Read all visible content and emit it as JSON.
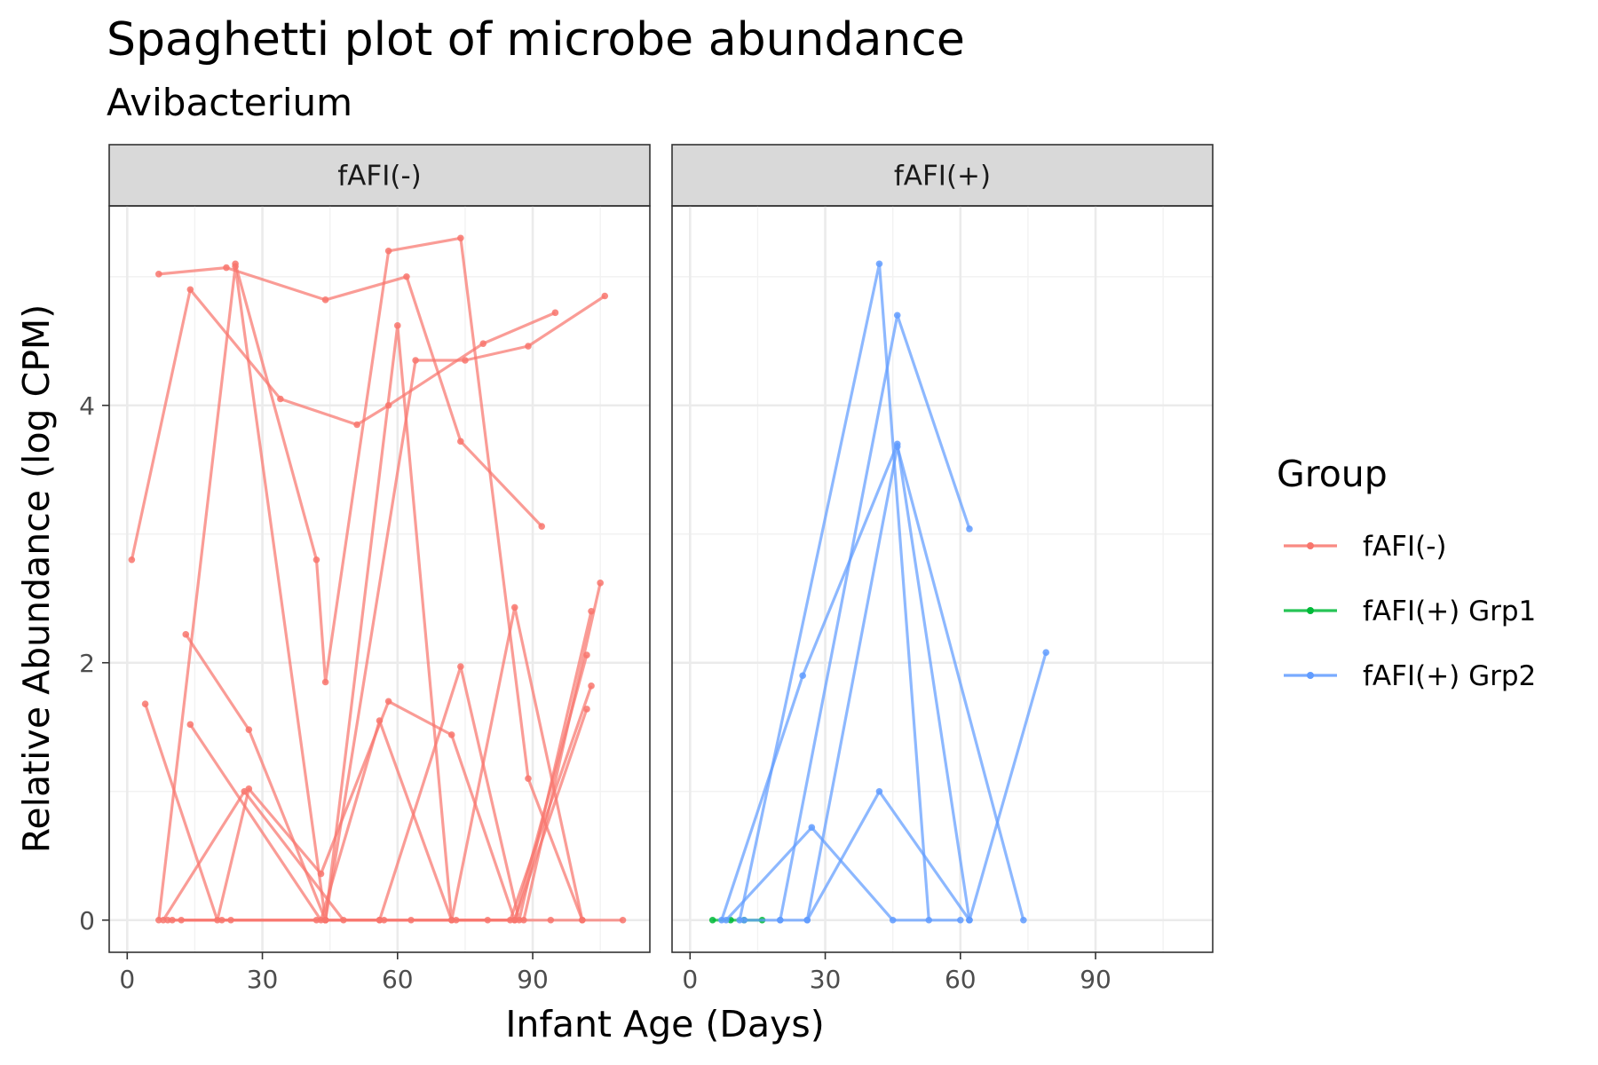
{
  "chart_data": {
    "type": "line",
    "title": "Spaghetti plot of microbe abundance",
    "subtitle": "Avibacterium",
    "xlabel": "Infant Age (Days)",
    "ylabel": "Relative Abundance (log CPM)",
    "xlim": [
      -4,
      116
    ],
    "ylim": [
      -0.25,
      5.55
    ],
    "x_ticks": [
      0,
      30,
      60,
      90
    ],
    "y_ticks": [
      0,
      2,
      4
    ],
    "grid": true,
    "legend": {
      "title": "Group",
      "position": "right",
      "items": [
        {
          "label": "fAFI(-)",
          "color": "#F8766D"
        },
        {
          "label": "fAFI(+) Grp1",
          "color": "#00BA38"
        },
        {
          "label": "fAFI(+) Grp2",
          "color": "#619CFF"
        }
      ]
    },
    "panels": [
      {
        "label": "fAFI(-)",
        "series": [
          {
            "group": "fAFI(-)",
            "points": [
              [
                1,
                2.8
              ],
              [
                14,
                4.9
              ],
              [
                34,
                4.05
              ],
              [
                51,
                3.85
              ],
              [
                58,
                4.0
              ],
              [
                79,
                4.48
              ],
              [
                95,
                4.72
              ]
            ]
          },
          {
            "group": "fAFI(-)",
            "points": [
              [
                7,
                5.02
              ],
              [
                22,
                5.07
              ],
              [
                44,
                4.82
              ],
              [
                62,
                5.0
              ],
              [
                74,
                3.72
              ],
              [
                92,
                3.06
              ]
            ]
          },
          {
            "group": "fAFI(-)",
            "points": [
              [
                24,
                5.1
              ],
              [
                42,
                2.8
              ],
              [
                44,
                1.85
              ],
              [
                58,
                5.2
              ],
              [
                74,
                5.3
              ],
              [
                89,
                1.1
              ],
              [
                101,
                0.0
              ]
            ]
          },
          {
            "group": "fAFI(-)",
            "points": [
              [
                13,
                2.22
              ],
              [
                27,
                1.48
              ],
              [
                44,
                0.0
              ],
              [
                60,
                4.62
              ],
              [
                72,
                0.0
              ],
              [
                86,
                2.43
              ],
              [
                101,
                0.0
              ]
            ]
          },
          {
            "group": "fAFI(-)",
            "points": [
              [
                4,
                1.68
              ],
              [
                20,
                0.0
              ],
              [
                27,
                1.02
              ],
              [
                43,
                0.36
              ],
              [
                58,
                1.7
              ],
              [
                72,
                1.44
              ],
              [
                86,
                0.0
              ],
              [
                102,
                2.06
              ]
            ]
          },
          {
            "group": "fAFI(-)",
            "points": [
              [
                14,
                1.52
              ],
              [
                43,
                0.0
              ],
              [
                56,
                1.55
              ],
              [
                72,
                0.0
              ],
              [
                85,
                0.0
              ],
              [
                103,
                1.82
              ]
            ]
          },
          {
            "group": "fAFI(-)",
            "points": [
              [
                7,
                0.0
              ],
              [
                24,
                5.08
              ],
              [
                44,
                0.0
              ],
              [
                64,
                4.35
              ],
              [
                75,
                4.35
              ],
              [
                89,
                4.46
              ],
              [
                106,
                4.85
              ]
            ]
          },
          {
            "group": "fAFI(-)",
            "points": [
              [
                10,
                0.0
              ],
              [
                21,
                0.0
              ],
              [
                44,
                0.0
              ],
              [
                56,
                0.0
              ],
              [
                74,
                1.97
              ],
              [
                87,
                0.0
              ],
              [
                103,
                2.4
              ]
            ]
          },
          {
            "group": "fAFI(-)",
            "points": [
              [
                8,
                0.0
              ],
              [
                26,
                1.0
              ],
              [
                48,
                0.0
              ],
              [
                63,
                0.0
              ],
              [
                80,
                0.0
              ],
              [
                94,
                0.0
              ],
              [
                110,
                0.0
              ]
            ]
          },
          {
            "group": "fAFI(-)",
            "points": [
              [
                12,
                0.0
              ],
              [
                23,
                0.0
              ],
              [
                44,
                0.0
              ],
              [
                57,
                0.0
              ],
              [
                73,
                0.0
              ],
              [
                88,
                0.0
              ],
              [
                105,
                2.62
              ]
            ]
          },
          {
            "group": "fAFI(-)",
            "points": [
              [
                9,
                0.0
              ],
              [
                42,
                0.0
              ],
              [
                56,
                0.0
              ],
              [
                86,
                0.0
              ],
              [
                102,
                1.64
              ]
            ]
          }
        ]
      },
      {
        "label": "fAFI(+)",
        "series": [
          {
            "group": "fAFI(+) Grp1",
            "points": [
              [
                5,
                0.0
              ],
              [
                9,
                0.0
              ],
              [
                12,
                0.0
              ],
              [
                16,
                0.0
              ]
            ]
          },
          {
            "group": "fAFI(+) Grp2",
            "points": [
              [
                7,
                0.0
              ],
              [
                25,
                1.9
              ],
              [
                46,
                3.7
              ],
              [
                62,
                0.0
              ]
            ]
          },
          {
            "group": "fAFI(+) Grp2",
            "points": [
              [
                8,
                0.0
              ],
              [
                27,
                0.72
              ],
              [
                45,
                0.0
              ],
              [
                60,
                0.0
              ]
            ]
          },
          {
            "group": "fAFI(+) Grp2",
            "points": [
              [
                11,
                0.0
              ],
              [
                42,
                5.1
              ],
              [
                53,
                0.0
              ]
            ]
          },
          {
            "group": "fAFI(+) Grp2",
            "points": [
              [
                12,
                0.0
              ],
              [
                20,
                0.0
              ],
              [
                26,
                0.0
              ],
              [
                42,
                1.0
              ],
              [
                62,
                0.0
              ]
            ]
          },
          {
            "group": "fAFI(+) Grp2",
            "points": [
              [
                20,
                0.0
              ],
              [
                46,
                4.7
              ],
              [
                62,
                3.04
              ]
            ]
          },
          {
            "group": "fAFI(+) Grp2",
            "points": [
              [
                26,
                0.0
              ],
              [
                46,
                3.68
              ],
              [
                74,
                0.0
              ]
            ]
          },
          {
            "group": "fAFI(+) Grp2",
            "points": [
              [
                62,
                0.0
              ],
              [
                79,
                2.08
              ]
            ]
          }
        ]
      }
    ]
  }
}
